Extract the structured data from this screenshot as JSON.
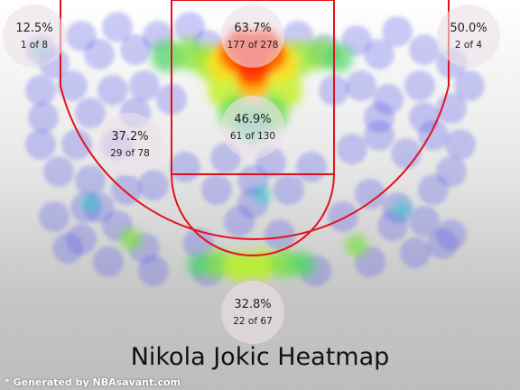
{
  "title": "Nikola Jokic Heatmap",
  "credit": "* Generated by NBAsavant.com",
  "colors": {
    "court_lines": "#e0141c",
    "blob_cool": "#5a5aec",
    "hot": "#ff2000"
  },
  "chart_data": {
    "type": "heatmap",
    "title": "Nikola Jokic Heatmap",
    "zones": [
      {
        "name": "left-corner-three",
        "pct": "12.5%",
        "made_of_att": "1 of 8",
        "made": 1,
        "attempts": 8
      },
      {
        "name": "restricted-area",
        "pct": "63.7%",
        "made_of_att": "177 of 278",
        "made": 177,
        "attempts": 278
      },
      {
        "name": "right-corner-three",
        "pct": "50.0%",
        "made_of_att": "2 of 4",
        "made": 2,
        "attempts": 4
      },
      {
        "name": "left-mid-range",
        "pct": "37.2%",
        "made_of_att": "29 of 78",
        "made": 29,
        "attempts": 78
      },
      {
        "name": "paint-non-ra",
        "pct": "46.9%",
        "made_of_att": "61 of 130",
        "made": 61,
        "attempts": 130
      },
      {
        "name": "above-break-three",
        "pct": "32.8%",
        "made_of_att": "22 of 67",
        "made": 22,
        "attempts": 67
      }
    ]
  }
}
